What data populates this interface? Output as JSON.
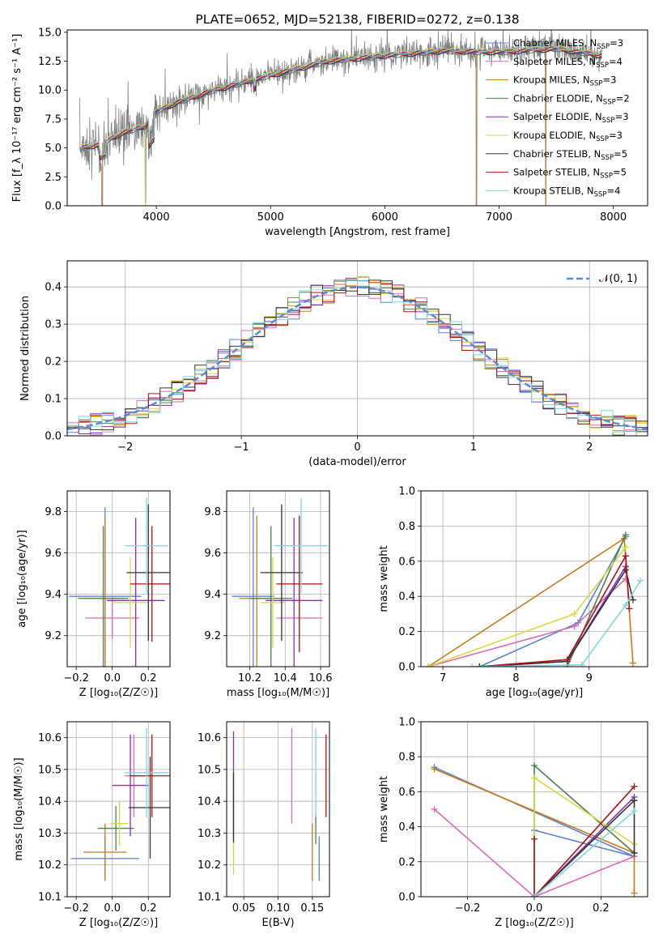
{
  "chart_data": [
    {
      "id": "spectrum",
      "type": "line",
      "title": "PLATE=0652, MJD=52138, FIBERID=0272, z=0.138",
      "xlabel": "wavelength [Angstrom, rest frame]",
      "ylabel": "Flux [f_λ 10⁻¹⁷ erg cm⁻² s⁻¹ A⁻¹]",
      "xlim": [
        3220,
        8300
      ],
      "ylim": [
        0,
        15.2
      ],
      "xticks": [
        4000,
        5000,
        6000,
        7000,
        8000
      ],
      "yticks": [
        0.0,
        2.5,
        5.0,
        7.5,
        10.0,
        12.5,
        15.0
      ],
      "grid": false,
      "legend": [
        {
          "label": "Chabrier MILES, N_SSP=3",
          "color": "#5B7FD6"
        },
        {
          "label": "Salpeter MILES, N_SSP=4",
          "color": "#D96AB7"
        },
        {
          "label": "Kroupa MILES, N_SSP=3",
          "color": "#C87A1A"
        },
        {
          "label": "Chabrier ELODIE, N_SSP=2",
          "color": "#4C7F4C"
        },
        {
          "label": "Salpeter ELODIE, N_SSP=3",
          "color": "#8B2BB8"
        },
        {
          "label": "Kroupa ELODIE, N_SSP=3",
          "color": "#D4DA40"
        },
        {
          "label": "Chabrier STELIB, N_SSP=5",
          "color": "#333333"
        },
        {
          "label": "Salpeter STELIB, N_SSP=5",
          "color": "#B01010"
        },
        {
          "label": "Kroupa STELIB, N_SSP=4",
          "color": "#7FD6E0"
        }
      ],
      "data_series": {
        "name": "data",
        "color": "#808080"
      },
      "continuum": {
        "x": [
          3320,
          3500,
          3700,
          3900,
          4000,
          4200,
          4500,
          5000,
          5500,
          6000,
          6500,
          7000,
          7500,
          7900
        ],
        "y": [
          5.0,
          5.3,
          6.3,
          6.9,
          8.2,
          9.0,
          10.0,
          11.3,
          12.5,
          13.0,
          13.4,
          13.3,
          13.6,
          13.0
        ]
      }
    },
    {
      "id": "residuals",
      "type": "line",
      "xlabel": "(data-model)/error",
      "ylabel": "Normed distribution",
      "xlim": [
        -2.5,
        2.5
      ],
      "ylim": [
        0,
        0.47
      ],
      "xticks": [
        -2,
        -1,
        0,
        1,
        2
      ],
      "xticklabels": [
        "−2",
        "−1",
        "0",
        "1",
        "2"
      ],
      "yticks": [
        0.0,
        0.1,
        0.2,
        0.3,
        0.4
      ],
      "grid": true,
      "legend_label": "𝒩(0, 1)",
      "gauss_color": "#5B8BD4"
    },
    {
      "id": "age-vs-Z",
      "type": "scatter",
      "xlabel": "Z [log₁₀(Z/Z☉)]",
      "ylabel": "age  [log₁₀(age/yr)]",
      "xlim": [
        -0.25,
        0.32
      ],
      "ylim": [
        9.05,
        9.9
      ],
      "xticks": [
        -0.2,
        0.0,
        0.2
      ],
      "xticklabels": [
        "−0.2",
        "0.0",
        "0.2"
      ],
      "yticks": [
        9.2,
        9.4,
        9.6,
        9.8
      ],
      "grid": true,
      "points": [
        {
          "x": -0.04,
          "y": 9.39,
          "xerr": 0.2,
          "yerr": 0.43,
          "color": "#5B7FD6"
        },
        {
          "x": 0.0,
          "y": 9.285,
          "xerr": 0.15,
          "yerr": 0.1,
          "color": "#D96AB7"
        },
        {
          "x": -0.04,
          "y": 9.38,
          "xerr": 0.11,
          "yerr": 0.4,
          "color": "#C87A1A"
        },
        {
          "x": -0.05,
          "y": 9.38,
          "xerr": 0.14,
          "yerr": 0.35,
          "color": "#4C7F4C"
        },
        {
          "x": 0.13,
          "y": 9.37,
          "xerr": 0.16,
          "yerr": 0.4,
          "color": "#8B2BB8"
        },
        {
          "x": 0.1,
          "y": 9.36,
          "xerr": 0.1,
          "yerr": 0.22,
          "color": "#D4DA40"
        },
        {
          "x": 0.2,
          "y": 9.505,
          "xerr": 0.12,
          "yerr": 0.33,
          "color": "#333333"
        },
        {
          "x": 0.22,
          "y": 9.45,
          "xerr": 0.12,
          "yerr": 0.28,
          "color": "#B01010"
        },
        {
          "x": 0.19,
          "y": 9.635,
          "xerr": 0.12,
          "yerr": 0.23,
          "color": "#7FD6E0"
        }
      ]
    },
    {
      "id": "age-vs-mass",
      "type": "scatter",
      "xlabel": "mass [log₁₀(M/M☉)]",
      "ylabel": "",
      "xlim": [
        10.07,
        10.65
      ],
      "ylim": [
        9.05,
        9.9
      ],
      "xticks": [
        10.2,
        10.4,
        10.6
      ],
      "yticks": [
        9.2,
        9.4,
        9.6,
        9.8
      ],
      "grid": true,
      "points": [
        {
          "x": 10.22,
          "y": 9.39,
          "xerr": 0.12,
          "yerr": 0.43,
          "color": "#5B7FD6"
        },
        {
          "x": 10.48,
          "y": 9.285,
          "xerr": 0.13,
          "yerr": 0.1,
          "color": "#D96AB7"
        },
        {
          "x": 10.24,
          "y": 9.38,
          "xerr": 0.1,
          "yerr": 0.4,
          "color": "#C87A1A"
        },
        {
          "x": 10.32,
          "y": 9.38,
          "xerr": 0.12,
          "yerr": 0.35,
          "color": "#4C7F4C"
        },
        {
          "x": 10.45,
          "y": 9.37,
          "xerr": 0.16,
          "yerr": 0.4,
          "color": "#8B2BB8"
        },
        {
          "x": 10.33,
          "y": 9.36,
          "xerr": 0.07,
          "yerr": 0.22,
          "color": "#D4DA40"
        },
        {
          "x": 10.38,
          "y": 9.505,
          "xerr": 0.12,
          "yerr": 0.33,
          "color": "#333333"
        },
        {
          "x": 10.48,
          "y": 9.45,
          "xerr": 0.13,
          "yerr": 0.33,
          "color": "#B01010"
        },
        {
          "x": 10.49,
          "y": 9.635,
          "xerr": 0.15,
          "yerr": 0.23,
          "color": "#7FD6E0"
        }
      ]
    },
    {
      "id": "weight-vs-age",
      "type": "line",
      "xlabel": "age  [log₁₀(age/yr)]",
      "ylabel": "mass weight",
      "xlim": [
        6.7,
        9.8
      ],
      "ylim": [
        0,
        1.0
      ],
      "xticks": [
        7,
        8,
        9
      ],
      "yticks": [
        0.0,
        0.2,
        0.4,
        0.6,
        0.8,
        1.0
      ],
      "grid": true,
      "series": [
        {
          "color": "#5B7FD6",
          "x": [
            7.5,
            8.85,
            9.5
          ],
          "y": [
            0.0,
            0.25,
            0.74
          ]
        },
        {
          "color": "#D96AB7",
          "x": [
            6.8,
            8.8,
            9.5
          ],
          "y": [
            0.0,
            0.23,
            0.5
          ]
        },
        {
          "color": "#C87A1A",
          "x": [
            6.8,
            9.48,
            9.6
          ],
          "y": [
            0.0,
            0.73,
            0.02
          ]
        },
        {
          "color": "#4C7F4C",
          "x": [
            8.7,
            9.5
          ],
          "y": [
            0.0,
            0.75
          ]
        },
        {
          "color": "#8B2BB8",
          "x": [
            7.5,
            8.7,
            9.5
          ],
          "y": [
            0.0,
            0.03,
            0.57
          ]
        },
        {
          "color": "#D4DA40",
          "x": [
            6.8,
            8.8,
            9.5
          ],
          "y": [
            0.0,
            0.3,
            0.68
          ]
        },
        {
          "color": "#333333",
          "x": [
            7.5,
            8.7,
            9.5,
            9.6
          ],
          "y": [
            0.0,
            0.03,
            0.55,
            0.38
          ]
        },
        {
          "color": "#B01010",
          "x": [
            7.5,
            8.7,
            9.5,
            9.55
          ],
          "y": [
            0.0,
            0.04,
            0.63,
            0.33
          ]
        },
        {
          "color": "#7FD6E0",
          "x": [
            7.4,
            8.9,
            9.5,
            9.7
          ],
          "y": [
            0.0,
            0.01,
            0.35,
            0.49
          ]
        }
      ]
    },
    {
      "id": "mass-vs-Z",
      "type": "scatter",
      "xlabel": "Z [log₁₀(Z/Z☉)]",
      "ylabel": "mass [log₁₀(M/M☉)]",
      "xlim": [
        -0.25,
        0.32
      ],
      "ylim": [
        10.1,
        10.65
      ],
      "xticks": [
        -0.2,
        0.0,
        0.2
      ],
      "xticklabels": [
        "−0.2",
        "0.0",
        "0.2"
      ],
      "yticks": [
        10.1,
        10.2,
        10.3,
        10.4,
        10.5,
        10.6
      ],
      "grid": true,
      "points": [
        {
          "x": -0.04,
          "y": 10.22,
          "xerr": 0.19,
          "yerr": 0.07,
          "color": "#5B7FD6"
        },
        {
          "x": 0.12,
          "y": 10.48,
          "xerr": 0.05,
          "yerr": 0.13,
          "color": "#D96AB7"
        },
        {
          "x": -0.04,
          "y": 10.24,
          "xerr": 0.12,
          "yerr": 0.09,
          "color": "#C87A1A"
        },
        {
          "x": 0.02,
          "y": 10.315,
          "xerr": 0.1,
          "yerr": 0.07,
          "color": "#4C7F4C"
        },
        {
          "x": 0.1,
          "y": 10.45,
          "xerr": 0.1,
          "yerr": 0.16,
          "color": "#8B2BB8"
        },
        {
          "x": 0.04,
          "y": 10.33,
          "xerr": 0.05,
          "yerr": 0.07,
          "color": "#D4DA40"
        },
        {
          "x": 0.21,
          "y": 10.38,
          "xerr": 0.12,
          "yerr": 0.16,
          "color": "#333333"
        },
        {
          "x": 0.22,
          "y": 10.48,
          "xerr": 0.12,
          "yerr": 0.13,
          "color": "#B01010"
        },
        {
          "x": 0.19,
          "y": 10.49,
          "xerr": 0.12,
          "yerr": 0.14,
          "color": "#7FD6E0"
        }
      ]
    },
    {
      "id": "mass-vs-ebv",
      "type": "scatter",
      "xlabel": "E(B-V)",
      "ylabel": "",
      "xlim": [
        0.025,
        0.175
      ],
      "ylim": [
        10.1,
        10.65
      ],
      "xticks": [
        0.05,
        0.1,
        0.15
      ],
      "xticklabels": [
        "0.05",
        "0.10",
        "0.15"
      ],
      "yticks": [
        10.1,
        10.2,
        10.3,
        10.4,
        10.5,
        10.6
      ],
      "grid": true,
      "points": [
        {
          "x": 0.16,
          "y": 10.22,
          "yerr": 0.07,
          "color": "#5B7FD6"
        },
        {
          "x": 0.12,
          "y": 10.48,
          "yerr": 0.15,
          "color": "#D96AB7"
        },
        {
          "x": 0.15,
          "y": 10.24,
          "yerr": 0.09,
          "color": "#C87A1A"
        },
        {
          "x": 0.155,
          "y": 10.315,
          "yerr": 0.05,
          "color": "#4C7F4C"
        },
        {
          "x": 0.035,
          "y": 10.45,
          "yerr": 0.17,
          "color": "#8B2BB8"
        },
        {
          "x": 0.035,
          "y": 10.33,
          "yerr": 0.16,
          "color": "#D4DA40"
        },
        {
          "x": 0.035,
          "y": 10.38,
          "yerr": 0.11,
          "color": "#333333"
        },
        {
          "x": 0.17,
          "y": 10.48,
          "yerr": 0.13,
          "color": "#B01010"
        },
        {
          "x": 0.155,
          "y": 10.49,
          "yerr": 0.14,
          "color": "#7FD6E0"
        }
      ]
    },
    {
      "id": "weight-vs-Z",
      "type": "line",
      "xlabel": "Z [log₁₀(Z/Z☉)]",
      "ylabel": "mass weight",
      "xlim": [
        -0.34,
        0.34
      ],
      "ylim": [
        0,
        1.0
      ],
      "xticks": [
        -0.2,
        0.0,
        0.2
      ],
      "xticklabels": [
        "−0.2",
        "0.0",
        "0.2"
      ],
      "yticks": [
        0.0,
        0.2,
        0.4,
        0.6,
        0.8,
        1.0
      ],
      "grid": true,
      "series": [
        {
          "color": "#5B7FD6",
          "x": [
            -0.3,
            0.3,
            0.0
          ],
          "y": [
            0.74,
            0.23,
            0.38
          ]
        },
        {
          "color": "#D96AB7",
          "x": [
            -0.3,
            0.0,
            0.3
          ],
          "y": [
            0.5,
            0.0,
            0.23
          ]
        },
        {
          "color": "#C87A1A",
          "x": [
            -0.3,
            0.3,
            0.3
          ],
          "y": [
            0.73,
            0.25,
            0.02
          ]
        },
        {
          "color": "#4C7F4C",
          "x": [
            0.0,
            0.0,
            0.3
          ],
          "y": [
            0.0,
            0.75,
            0.25
          ]
        },
        {
          "color": "#8B2BB8",
          "x": [
            0.0,
            0.3
          ],
          "y": [
            0.0,
            0.57
          ]
        },
        {
          "color": "#D4DA40",
          "x": [
            0.0,
            0.0,
            0.3
          ],
          "y": [
            0.0,
            0.68,
            0.3
          ]
        },
        {
          "color": "#333333",
          "x": [
            0.0,
            0.3,
            0.3
          ],
          "y": [
            0.0,
            0.55,
            0.25
          ]
        },
        {
          "color": "#B01010",
          "x": [
            0.0,
            0.0,
            0.3
          ],
          "y": [
            0.33,
            0.0,
            0.63
          ]
        },
        {
          "color": "#7FD6E0",
          "x": [
            0.0,
            0.3
          ],
          "y": [
            0.0,
            0.49
          ]
        }
      ]
    }
  ]
}
